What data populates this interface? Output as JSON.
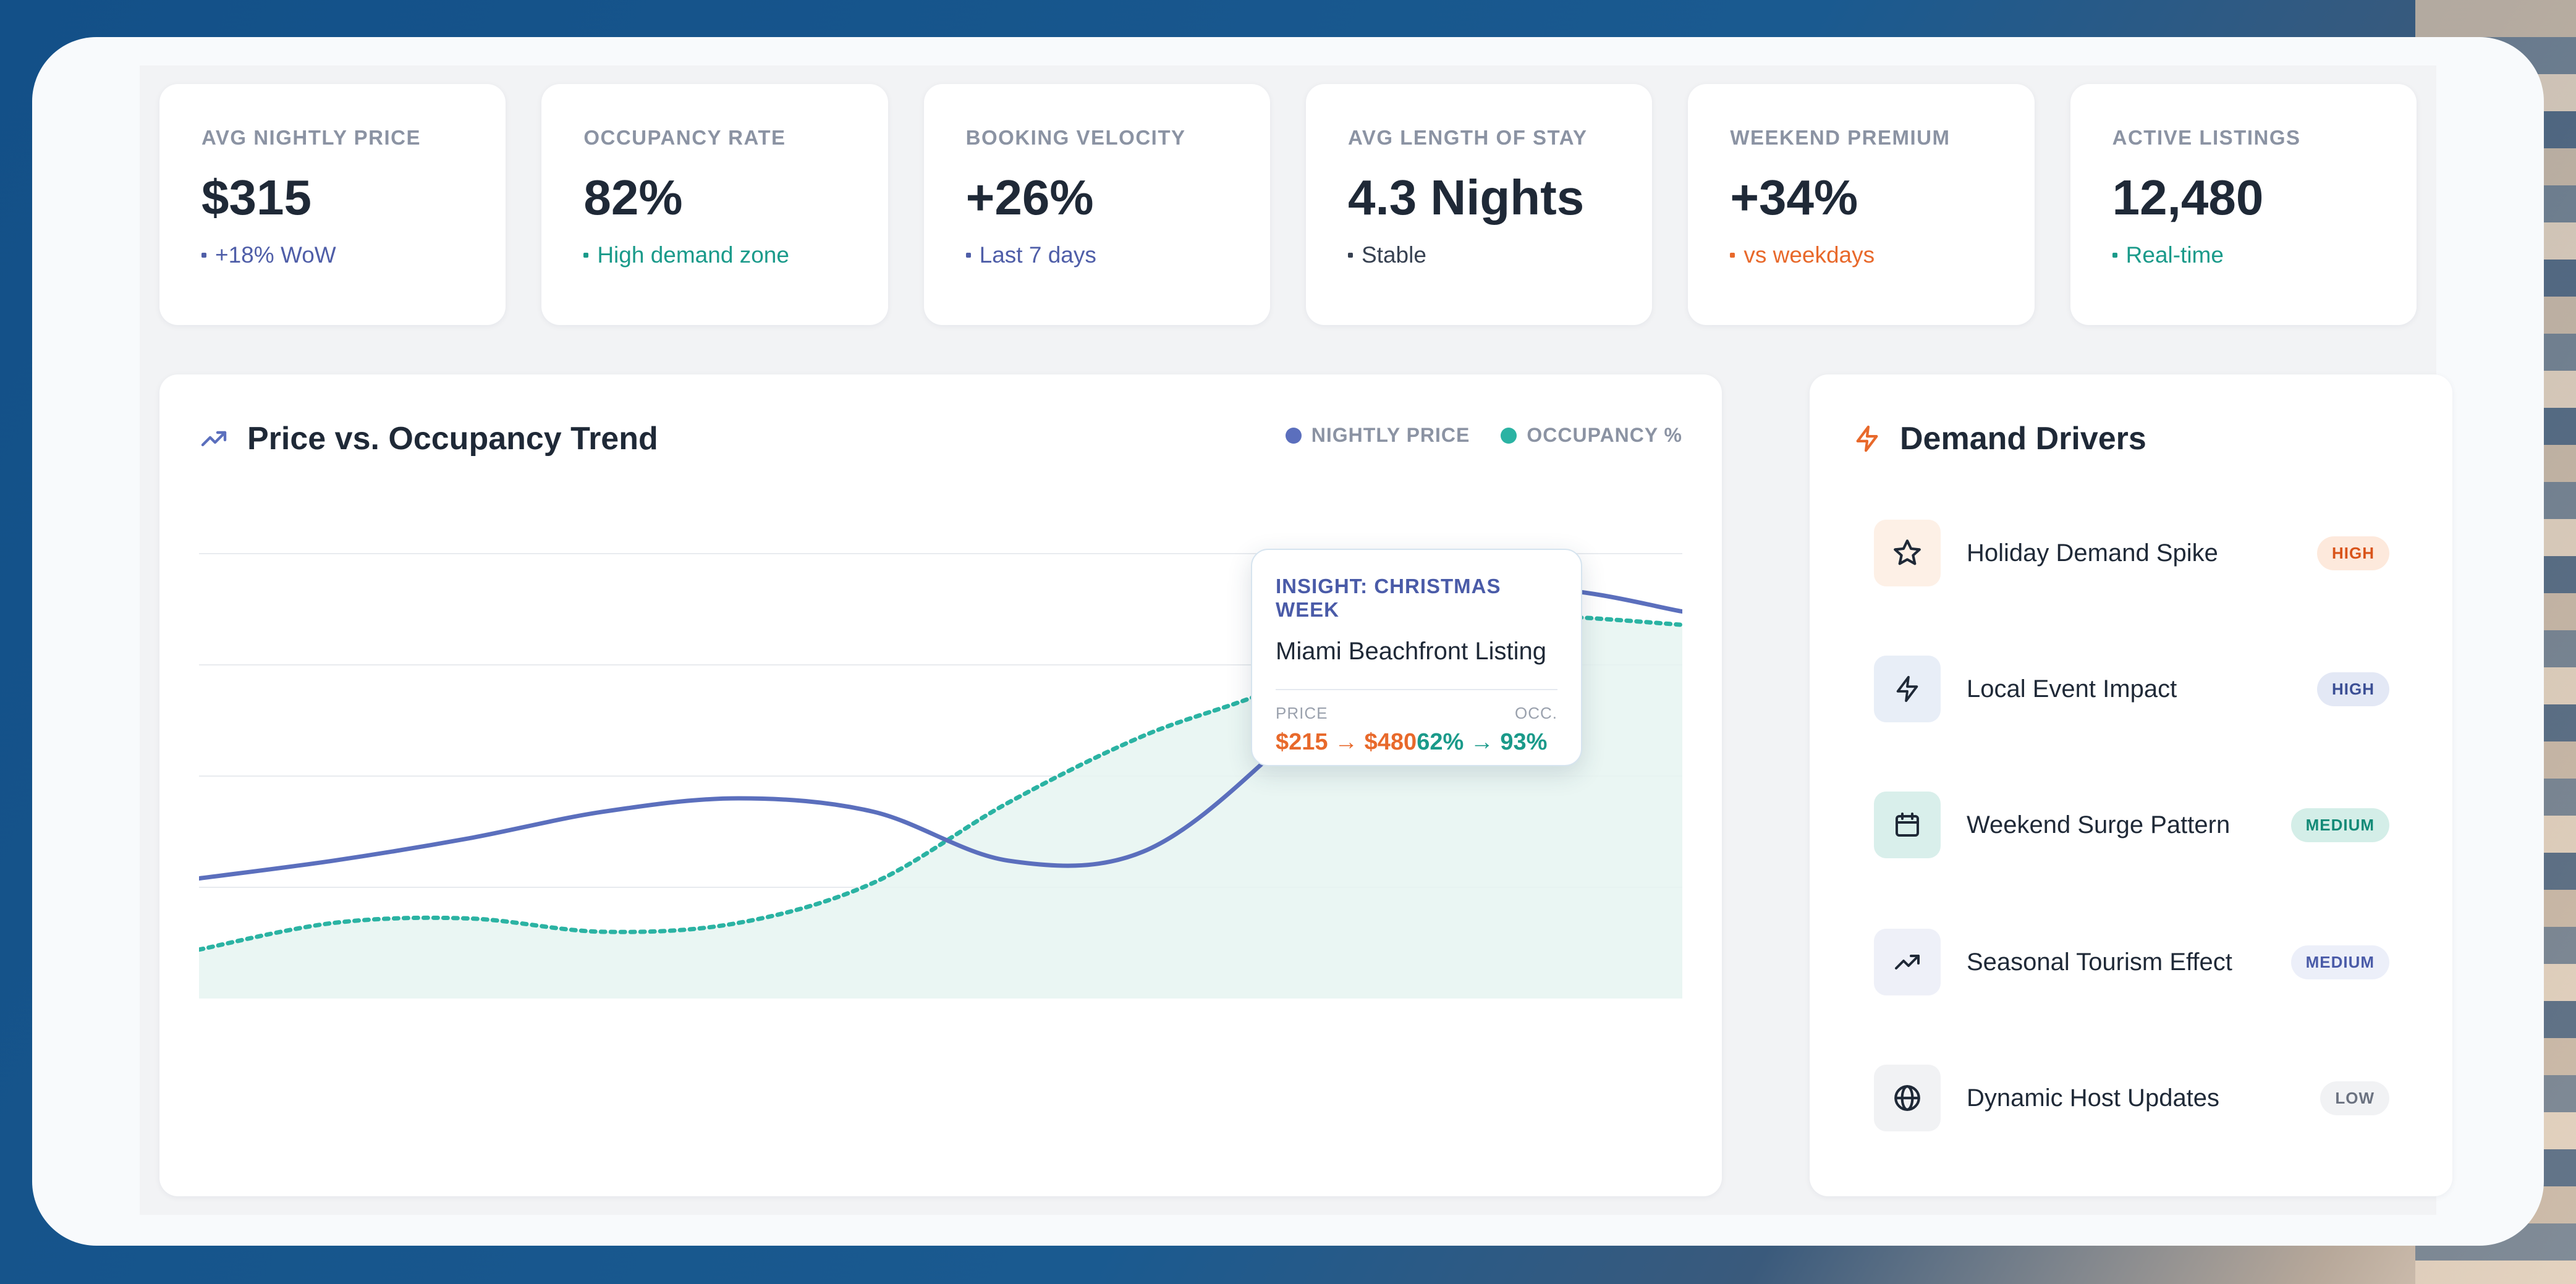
{
  "kpis": [
    {
      "label": "AVG NIGHTLY PRICE",
      "value": "$315",
      "sub": "+18% WoW",
      "color": "#4f5ea8"
    },
    {
      "label": "OCCUPANCY RATE",
      "value": "82%",
      "sub": "High demand zone",
      "color": "#1a9a8a"
    },
    {
      "label": "BOOKING VELOCITY",
      "value": "+26%",
      "sub": "Last 7 days",
      "color": "#4f5ea8"
    },
    {
      "label": "AVG LENGTH OF STAY",
      "value": "4.3 Nights",
      "sub": "Stable",
      "color": "#374151"
    },
    {
      "label": "WEEKEND PREMIUM",
      "value": "+34%",
      "sub": "vs weekdays",
      "color": "#e8692b"
    },
    {
      "label": "ACTIVE LISTINGS",
      "value": "12,480",
      "sub": "Real-time",
      "color": "#1a9a8a"
    }
  ],
  "trend": {
    "title": "Price vs. Occupancy Trend",
    "legend": [
      {
        "label": "NIGHTLY PRICE",
        "color": "#5b6fbd"
      },
      {
        "label": "OCCUPANCY %",
        "color": "#2bb3a3"
      }
    ],
    "tooltip": {
      "title": "INSIGHT: CHRISTMAS WEEK",
      "listing": "Miami Beachfront Listing",
      "price_label": "PRICE",
      "occ_label": "OCC.",
      "price_value": "$215 → $480",
      "occ_value": "62% → 93%"
    }
  },
  "chart_data": {
    "type": "line",
    "title": "Price vs. Occupancy Trend",
    "grid": true,
    "series": [
      {
        "name": "NIGHTLY PRICE",
        "color": "#5b6fbd",
        "style": "solid",
        "values": [
          0.27,
          0.31,
          0.36,
          0.42,
          0.45,
          0.42,
          0.31,
          0.33,
          0.56,
          0.88,
          0.92,
          0.87
        ]
      },
      {
        "name": "OCCUPANCY %",
        "color": "#2bb3a3",
        "style": "dotted",
        "values": [
          0.11,
          0.17,
          0.18,
          0.15,
          0.17,
          0.26,
          0.44,
          0.59,
          0.7,
          0.86,
          0.86,
          0.84
        ]
      }
    ]
  },
  "drivers": {
    "title": "Demand Drivers",
    "items": [
      {
        "name": "Holiday Demand Spike",
        "badge": "HIGH",
        "icon": "star-icon",
        "icon_bg": "#fdf0e6",
        "badge_bg": "#fde9dc",
        "badge_color": "#d9541a"
      },
      {
        "name": "Local Event Impact",
        "badge": "HIGH",
        "icon": "lightning-icon",
        "icon_bg": "#e8eef7",
        "badge_bg": "#e3e8f5",
        "badge_color": "#3c4f95"
      },
      {
        "name": "Weekend Surge Pattern",
        "badge": "MEDIUM",
        "icon": "calendar-icon",
        "icon_bg": "#d9efeb",
        "badge_bg": "#d4eee8",
        "badge_color": "#138a77"
      },
      {
        "name": "Seasonal Tourism Effect",
        "badge": "MEDIUM",
        "icon": "trending-icon",
        "icon_bg": "#eef0f8",
        "badge_bg": "#eceff9",
        "badge_color": "#4a5ba8"
      },
      {
        "name": "Dynamic Host Updates",
        "badge": "LOW",
        "icon": "globe-icon",
        "icon_bg": "#f1f2f4",
        "badge_bg": "#f1f2f4",
        "badge_color": "#6b7280"
      }
    ]
  }
}
